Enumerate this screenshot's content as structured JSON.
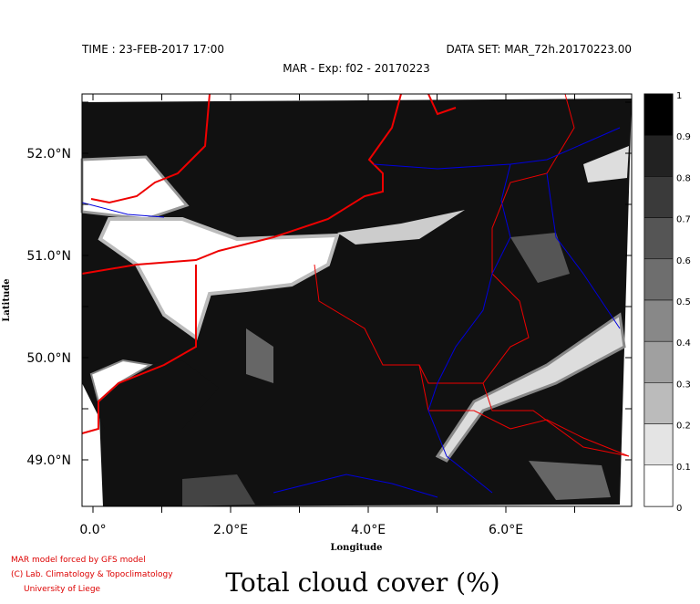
{
  "header": {
    "time": "TIME : 23-FEB-2017 17:00",
    "dataset": "DATA SET: MAR_72h.20170223.00",
    "experiment": "MAR - Exp: f02 - 20170223"
  },
  "axes": {
    "x_label": "Longitude",
    "y_label": "Latitude",
    "x_ticks": [
      "0.0°",
      "2.0°E",
      "4.0°E",
      "6.0°E"
    ],
    "y_ticks": [
      "52.0°N",
      "51.0°N",
      "50.0°N",
      "49.0°N"
    ]
  },
  "colorbar": {
    "labels": [
      "1",
      "0.9",
      "0.8",
      "0.7",
      "0.6",
      "0.5",
      "0.4",
      "0.3",
      "0.2",
      "0.1",
      "0"
    ]
  },
  "credits": [
    "MAR model forced by GFS model",
    "(C) Lab. Climatology & Topoclimatology",
    "University of Liege"
  ],
  "footer": {
    "title": "Total cloud cover (%)"
  }
}
